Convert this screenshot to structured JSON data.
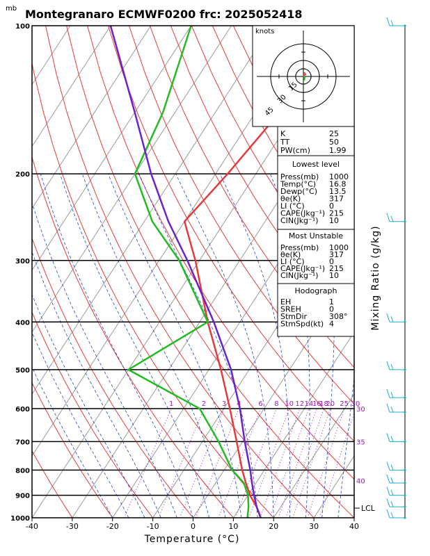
{
  "chart_data": {
    "type": "line",
    "title": "Montegranaro ECMWF0200 frc: 2025052418",
    "pressure_unit_label": "mb",
    "xlabel": "Temperature (°C)",
    "ylabel_right": "Mixing Ratio (g/kg)",
    "x_ticks": [
      -40,
      -30,
      -20,
      -10,
      0,
      10,
      20,
      30,
      40
    ],
    "pressure_ticks": [
      100,
      200,
      300,
      400,
      500,
      600,
      700,
      800,
      900,
      1000
    ],
    "xlim": [
      -40,
      40
    ],
    "ylim_pressure": [
      1000,
      100
    ],
    "series": [
      {
        "color": "#e33b3b",
        "points": [
          [
            1000,
            16.8
          ],
          [
            950,
            14.0
          ],
          [
            900,
            10.5
          ],
          [
            850,
            7.5
          ],
          [
            800,
            4.5
          ],
          [
            700,
            -1.5
          ],
          [
            600,
            -8.5
          ],
          [
            500,
            -17.0
          ],
          [
            400,
            -28.0
          ],
          [
            300,
            -41.0
          ],
          [
            250,
            -50.0
          ],
          [
            200,
            -47.0
          ],
          [
            150,
            -44.0
          ],
          [
            100,
            -41.5
          ]
        ]
      },
      {
        "color": "#22bb22",
        "points": [
          [
            1000,
            13.5
          ],
          [
            950,
            12.0
          ],
          [
            900,
            10.0
          ],
          [
            850,
            7.0
          ],
          [
            800,
            2.0
          ],
          [
            700,
            -6.0
          ],
          [
            600,
            -16.0
          ],
          [
            500,
            -40.0
          ],
          [
            400,
            -28.0
          ],
          [
            300,
            -45.0
          ],
          [
            250,
            -58.0
          ],
          [
            200,
            -70.0
          ],
          [
            150,
            -73.0
          ],
          [
            100,
            -80.0
          ]
        ]
      },
      {
        "color": "#6a22cc",
        "points": [
          [
            1000,
            16.8
          ],
          [
            950,
            14.0
          ],
          [
            900,
            11.5
          ],
          [
            850,
            9.0
          ],
          [
            800,
            6.5
          ],
          [
            700,
            0.5
          ],
          [
            600,
            -6.0
          ],
          [
            500,
            -14.5
          ],
          [
            400,
            -26.5
          ],
          [
            300,
            -43.0
          ],
          [
            250,
            -54.0
          ],
          [
            200,
            -66.0
          ],
          [
            150,
            -80.0
          ],
          [
            100,
            -100.0
          ]
        ]
      }
    ],
    "mixing_ratio_labels": [
      1,
      2,
      3,
      4,
      6,
      8,
      10,
      12,
      14,
      16,
      18,
      20,
      25,
      30
    ],
    "right_annotations": [
      {
        "text": "30",
        "pressure": 600
      },
      {
        "text": "35",
        "pressure": 700
      },
      {
        "text": "40",
        "pressure": 840
      },
      {
        "text": "LCL",
        "pressure": 962
      }
    ],
    "hodograph": {
      "units_label": "knots",
      "ring_labels": [
        "15",
        "30",
        "45"
      ]
    },
    "indices": [
      {
        "label": "K",
        "value": "25"
      },
      {
        "label": "TT",
        "value": "50"
      },
      {
        "label": "PW(cm)",
        "value": "1.99"
      }
    ],
    "lowest_level": {
      "heading": "Lowest level",
      "rows": [
        {
          "label": "Press(mb)",
          "value": "1000"
        },
        {
          "label": "Temp(°C)",
          "value": "16.8"
        },
        {
          "label": "Dewp(°C)",
          "value": "13.5"
        },
        {
          "label": "θe(K)",
          "value": "317"
        },
        {
          "label": "LI (°C)",
          "value": "0"
        },
        {
          "label": "CAPE(Jkg⁻¹)",
          "value": "215"
        },
        {
          "label": "CIN(Jkg⁻¹)",
          "value": "10"
        }
      ]
    },
    "most_unstable": {
      "heading": "Most Unstable",
      "rows": [
        {
          "label": "Press(mb)",
          "value": "1000"
        },
        {
          "label": "θe(K)",
          "value": "317"
        },
        {
          "label": "LI (°C)",
          "value": "0"
        },
        {
          "label": "CAPE(Jkg⁻¹)",
          "value": "215"
        },
        {
          "label": "CIN(Jkg⁻¹)",
          "value": "10"
        }
      ]
    },
    "hodograph_block": {
      "heading": "Hodograph",
      "rows": [
        {
          "label": "EH",
          "value": "1"
        },
        {
          "label": "SREH",
          "value": "0"
        },
        {
          "label": "StmDir",
          "value": "308°"
        },
        {
          "label": "StmSpd(kt)",
          "value": "4"
        }
      ]
    },
    "wind_barb_pressures": [
      100,
      250,
      400,
      500,
      570,
      610,
      700,
      800,
      850,
      900,
      950,
      1000
    ],
    "colors": {
      "isotherm": "#999999",
      "dry_adiabat": "#e33b3b",
      "moist_adiabat": "#2244cc",
      "mixing_ratio": "#9b1fb8",
      "wind_barb": "#22aacc"
    }
  }
}
